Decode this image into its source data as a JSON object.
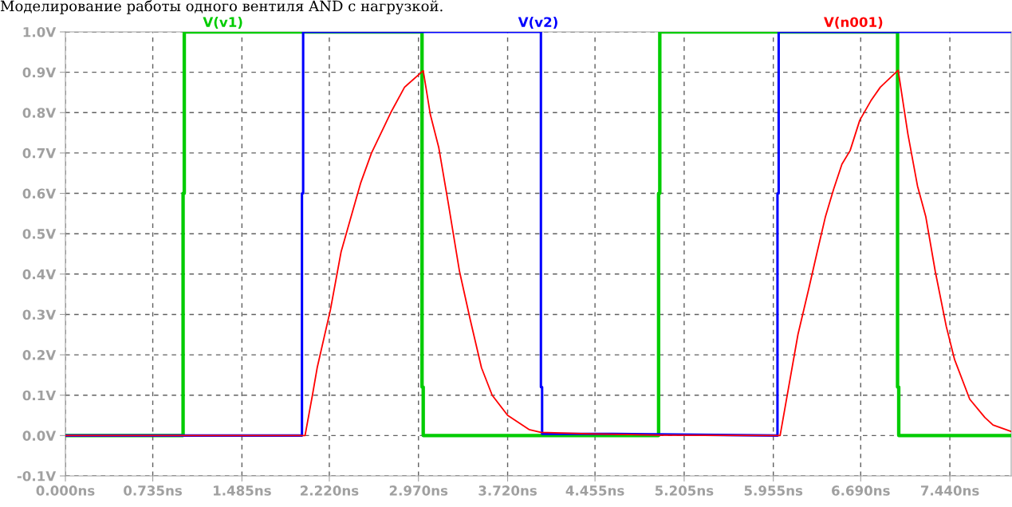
{
  "chart_data": {
    "type": "line",
    "title": "Моделирование работы одного вентиля AND с нагрузкой.",
    "xlim": [
      0,
      7.956
    ],
    "ylim": [
      -0.1,
      1.0
    ],
    "xticks": [
      {
        "value": 0,
        "label": "0.000ns"
      },
      {
        "value": 0.735,
        "label": "0.735ns"
      },
      {
        "value": 1.485,
        "label": "1.485ns"
      },
      {
        "value": 2.22,
        "label": "2.220ns"
      },
      {
        "value": 2.97,
        "label": "2.970ns"
      },
      {
        "value": 3.72,
        "label": "3.720ns"
      },
      {
        "value": 4.455,
        "label": "4.455ns"
      },
      {
        "value": 5.205,
        "label": "5.205ns"
      },
      {
        "value": 5.955,
        "label": "5.955ns"
      },
      {
        "value": 6.69,
        "label": "6.690ns"
      },
      {
        "value": 7.44,
        "label": "7.440ns"
      }
    ],
    "yticks": [
      {
        "value": -0.1,
        "label": "-0.1V"
      },
      {
        "value": 0.0,
        "label": "0.0V"
      },
      {
        "value": 0.1,
        "label": "0.1V"
      },
      {
        "value": 0.2,
        "label": "0.2V"
      },
      {
        "value": 0.3,
        "label": "0.3V"
      },
      {
        "value": 0.4,
        "label": "0.4V"
      },
      {
        "value": 0.5,
        "label": "0.5V"
      },
      {
        "value": 0.6,
        "label": "0.6V"
      },
      {
        "value": 0.7,
        "label": "0.7V"
      },
      {
        "value": 0.8,
        "label": "0.8V"
      },
      {
        "value": 0.9,
        "label": "0.9V"
      },
      {
        "value": 1.0,
        "label": "1.0V"
      }
    ],
    "grid": true,
    "legend": false,
    "marker": "none",
    "line_style": "solid",
    "series": [
      {
        "name": "V(v1)",
        "color": "#00cc00",
        "x": [
          0,
          0.99,
          0.99,
          1.0,
          1.0,
          3.0,
          3.0,
          3.01,
          3.01,
          4.99,
          4.99,
          5.0,
          5.0,
          7.0,
          7.0,
          7.01,
          7.01,
          7.956
        ],
        "values": [
          0,
          0,
          0.6,
          0.6,
          1.0,
          1.0,
          0.12,
          0.12,
          0,
          0,
          0.6,
          0.6,
          1.0,
          1.0,
          0.12,
          0.12,
          0,
          0
        ]
      },
      {
        "name": "V(v2)",
        "color": "#0000ff",
        "x": [
          0,
          1.99,
          1.99,
          2.0,
          2.0,
          4.0,
          4.0,
          4.01,
          4.01,
          4.6,
          5.99,
          5.99,
          6.0,
          6.0,
          7.956
        ],
        "values": [
          0,
          0,
          0.6,
          0.6,
          1.0,
          1.0,
          0.12,
          0.12,
          0.004,
          0.004,
          0,
          0.6,
          0.6,
          1.0,
          1.0
        ]
      },
      {
        "name": "V(n001)",
        "color": "#ff0000",
        "x": [
          0,
          2.016,
          2.078,
          2.118,
          2.229,
          2.319,
          2.483,
          2.575,
          2.737,
          2.853,
          3.01,
          3.07,
          3.141,
          3.22,
          3.315,
          3.407,
          3.5,
          3.59,
          3.72,
          3.9,
          4.0,
          4.45,
          5.0,
          6.0,
          6.012,
          6.162,
          6.255,
          6.324,
          6.394,
          6.463,
          6.532,
          6.601,
          6.682,
          6.775,
          6.855,
          7.005,
          7.087,
          7.168,
          7.237,
          7.317,
          7.41,
          7.48,
          7.607,
          7.734,
          7.803,
          7.956
        ],
        "values": [
          0,
          0,
          0.1,
          0.168,
          0.311,
          0.455,
          0.625,
          0.7,
          0.8,
          0.863,
          0.904,
          0.795,
          0.713,
          0.577,
          0.407,
          0.285,
          0.168,
          0.1,
          0.05,
          0.015,
          0.008,
          0.004,
          0.001,
          0,
          0,
          0.25,
          0.366,
          0.455,
          0.543,
          0.611,
          0.672,
          0.706,
          0.781,
          0.829,
          0.863,
          0.905,
          0.747,
          0.618,
          0.543,
          0.407,
          0.27,
          0.188,
          0.09,
          0.045,
          0.026,
          0.01
        ]
      }
    ]
  }
}
